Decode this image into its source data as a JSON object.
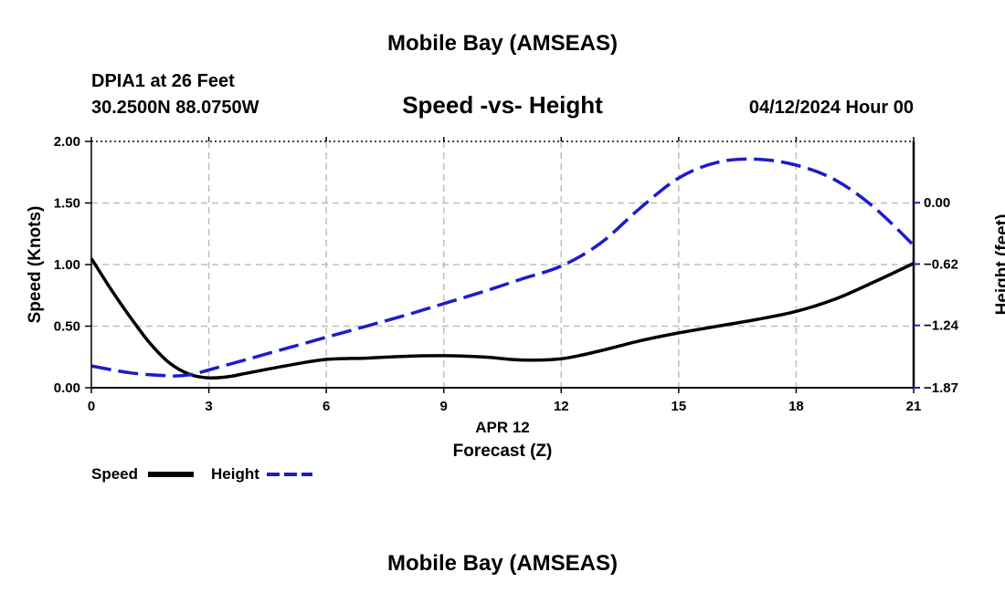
{
  "page": {
    "title_top": "Mobile Bay (AMSEAS)",
    "title_bottom": "Mobile Bay (AMSEAS)",
    "station": "DPIA1 at 26 Feet",
    "coords": "30.2500N  88.0750W",
    "datetime": "04/12/2024 Hour 00"
  },
  "chart_data": {
    "type": "line",
    "title": "Speed -vs- Height",
    "xlabel": "Forecast (Z)",
    "xlabel_date": "APR 12",
    "xlim": [
      0,
      21
    ],
    "x_ticks": [
      0,
      3,
      6,
      9,
      12,
      15,
      18,
      21
    ],
    "x_tick_labels": [
      "0",
      "3",
      "6",
      "9",
      "12",
      "15",
      "18",
      "21"
    ],
    "grid": true,
    "left_axis": {
      "label": "Speed (Knots)",
      "ylim": [
        0,
        2
      ],
      "ticks": [
        0,
        0.5,
        1.0,
        1.5,
        2.0
      ],
      "tick_labels": [
        "0.00",
        "0.50",
        "1.00",
        "1.50",
        "2.00"
      ]
    },
    "right_axis": {
      "label": "Height (feet)",
      "ylim": [
        -1.87,
        0.62
      ],
      "ticks": [
        -1.87,
        -1.24,
        -0.62,
        0.0
      ],
      "tick_labels": [
        "−1.87",
        "−1.24",
        "−0.62",
        "0.00"
      ]
    },
    "series": [
      {
        "name": "Speed",
        "axis": "left",
        "color": "#000000",
        "style": "solid",
        "x": [
          0,
          0.5,
          1,
          1.5,
          2,
          2.5,
          3,
          3.5,
          4,
          5,
          6,
          7,
          8,
          9,
          10,
          11,
          12,
          13,
          14,
          15,
          16,
          17,
          18,
          19,
          20,
          21
        ],
        "values": [
          1.05,
          0.8,
          0.57,
          0.36,
          0.2,
          0.11,
          0.08,
          0.09,
          0.12,
          0.18,
          0.23,
          0.24,
          0.255,
          0.26,
          0.25,
          0.225,
          0.235,
          0.3,
          0.38,
          0.445,
          0.5,
          0.555,
          0.62,
          0.72,
          0.86,
          1.01
        ]
      },
      {
        "name": "Height",
        "axis": "right",
        "color": "#1c1ccc",
        "style": "dashed",
        "x": [
          0,
          1,
          2,
          2.5,
          3,
          4,
          5,
          6,
          7,
          8,
          9,
          10,
          11,
          12,
          13,
          14,
          15,
          16,
          17,
          18,
          19,
          20,
          21
        ],
        "values": [
          -1.65,
          -1.72,
          -1.75,
          -1.74,
          -1.69,
          -1.58,
          -1.47,
          -1.36,
          -1.25,
          -1.14,
          -1.02,
          -0.9,
          -0.77,
          -0.64,
          -0.41,
          -0.06,
          0.25,
          0.41,
          0.44,
          0.38,
          0.23,
          -0.05,
          -0.43
        ]
      }
    ],
    "legend": {
      "placement": "bottom-left",
      "entries": [
        "Speed",
        "Height"
      ]
    }
  }
}
